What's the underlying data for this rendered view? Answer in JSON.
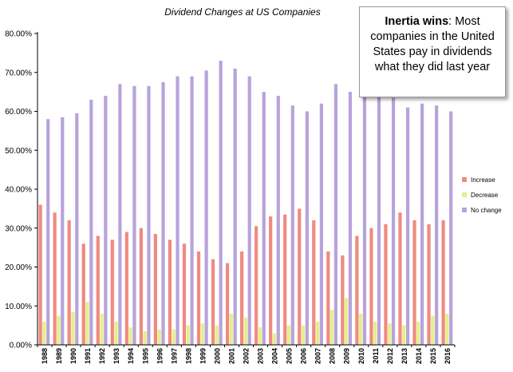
{
  "chart_data": {
    "type": "bar",
    "title": "Dividend Changes at US Companies",
    "categories": [
      "1988",
      "1989",
      "1990",
      "1991",
      "1992",
      "1993",
      "1994",
      "1995",
      "1996",
      "1997",
      "1998",
      "1999",
      "2000",
      "2001",
      "2002",
      "2003",
      "2004",
      "2005",
      "2006",
      "2007",
      "2008",
      "2009",
      "2010",
      "2011",
      "2012",
      "2013",
      "2014",
      "2015",
      "2016"
    ],
    "series": [
      {
        "name": "Increase",
        "color": "#f08a80",
        "values": [
          36,
          34,
          32,
          26,
          28,
          27,
          29,
          30,
          28.5,
          27,
          26,
          24,
          22,
          21,
          24,
          30.5,
          33,
          33.5,
          35,
          32,
          24,
          23,
          28,
          30,
          31,
          34,
          32,
          31,
          32
        ]
      },
      {
        "name": "Decrease",
        "color": "#e6ef8c",
        "values": [
          6,
          7.5,
          8.5,
          11,
          8,
          6,
          4.5,
          3.5,
          4,
          4,
          5,
          5.5,
          5,
          8,
          7,
          4.5,
          3,
          5,
          5,
          6,
          9,
          12,
          8,
          6,
          5.5,
          5,
          6,
          7.5,
          8
        ]
      },
      {
        "name": "No change",
        "color": "#b7a3dc",
        "values": [
          58,
          58.5,
          59.5,
          63,
          64,
          67,
          66.5,
          66.5,
          67.5,
          69,
          69,
          70.5,
          73,
          71,
          69,
          65,
          64,
          61.5,
          60,
          62,
          67,
          65,
          64,
          64,
          63.5,
          61,
          62,
          61.5,
          60
        ]
      }
    ],
    "yticks": [
      "0.00%",
      "10.00%",
      "20.00%",
      "30.00%",
      "40.00%",
      "50.00%",
      "60.00%",
      "70.00%",
      "80.00%"
    ],
    "ylim": [
      0,
      80
    ],
    "grid": false,
    "legend_position": "right"
  },
  "annotation": {
    "bold": "Inertia wins",
    "text": ": Most companies in the United States pay in dividends what they did last year"
  }
}
